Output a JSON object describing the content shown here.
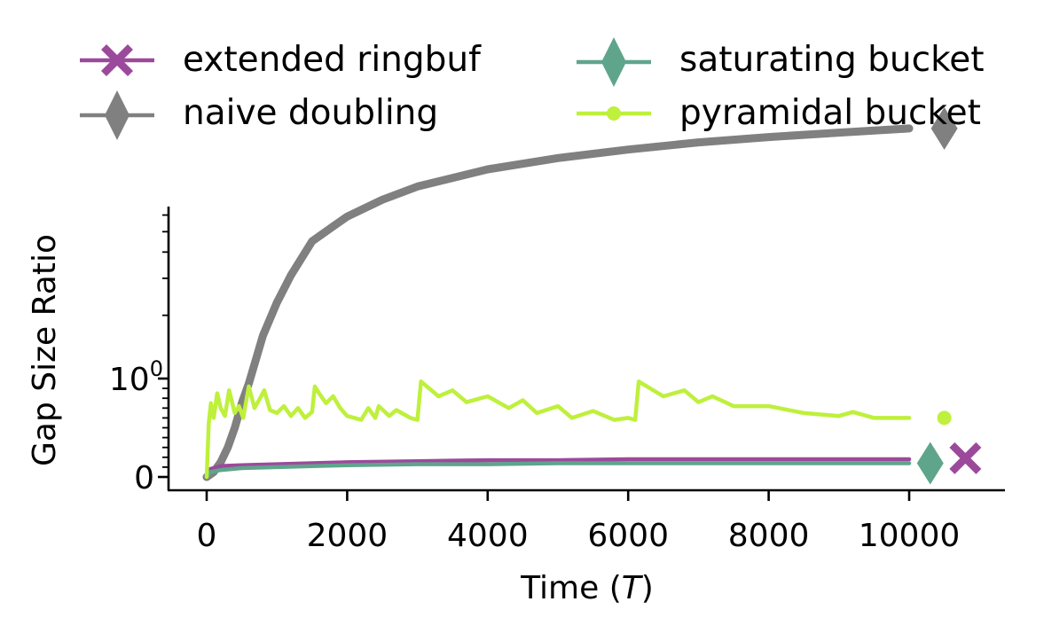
{
  "chart_data": {
    "type": "line",
    "xlabel": "Time (T)",
    "xlabel_prefix": "Time (",
    "xlabel_var": "T",
    "xlabel_suffix": ")",
    "ylabel": "Gap Size Ratio",
    "xlim": [
      -500,
      11300
    ],
    "yscale": "symlog",
    "x_ticks": [
      0,
      2000,
      4000,
      6000,
      8000,
      10000
    ],
    "x_tick_labels": [
      "0",
      "2000",
      "4000",
      "6000",
      "8000",
      "10000"
    ],
    "y_tick_labels": [
      {
        "value": 0,
        "base": "0",
        "exp": ""
      },
      {
        "value": 1,
        "base": "10",
        "exp": "0"
      }
    ],
    "grid": false,
    "legend_position": "top",
    "series": [
      {
        "name": "extended ringbuf",
        "color": "#9b4a9b",
        "marker": "x-filled",
        "end_marker_x": 10800,
        "end_value": 0.19,
        "x": [
          0,
          50,
          200,
          500,
          1000,
          1500,
          2000,
          3000,
          4000,
          5000,
          6000,
          7000,
          8000,
          9000,
          10000
        ],
        "values": [
          0.0,
          0.08,
          0.11,
          0.12,
          0.13,
          0.14,
          0.15,
          0.16,
          0.17,
          0.17,
          0.18,
          0.18,
          0.18,
          0.18,
          0.18
        ]
      },
      {
        "name": "saturating bucket",
        "color": "#5fa58c",
        "marker": "diamond",
        "end_marker_x": 10300,
        "end_value": 0.14,
        "x": [
          0,
          50,
          200,
          500,
          1000,
          1500,
          2000,
          3000,
          4000,
          5000,
          6000,
          7000,
          8000,
          9000,
          10000
        ],
        "values": [
          0.0,
          0.05,
          0.07,
          0.09,
          0.1,
          0.11,
          0.12,
          0.13,
          0.13,
          0.14,
          0.14,
          0.14,
          0.14,
          0.14,
          0.14
        ]
      },
      {
        "name": "naive doubling",
        "color": "#808080",
        "marker": "diamond",
        "end_marker_x": 10500,
        "end_value": 15.5,
        "x": [
          0,
          100,
          200,
          300,
          400,
          500,
          600,
          800,
          1000,
          1200,
          1500,
          1800,
          2000,
          2500,
          3000,
          4000,
          5000,
          6000,
          7000,
          8000,
          9000,
          10000
        ],
        "values": [
          0.0,
          0.05,
          0.15,
          0.3,
          0.5,
          0.75,
          0.95,
          1.6,
          2.3,
          3.1,
          4.5,
          5.3,
          5.9,
          7.1,
          8.2,
          9.9,
          11.2,
          12.3,
          13.3,
          14.1,
          14.8,
          15.5
        ]
      },
      {
        "name": "pyramidal bucket",
        "color": "#bef03c",
        "marker": "dot",
        "end_marker_x": 10500,
        "end_value": 0.6,
        "x": [
          0,
          30,
          60,
          100,
          150,
          200,
          260,
          320,
          400,
          460,
          520,
          600,
          680,
          760,
          820,
          900,
          1000,
          1100,
          1200,
          1300,
          1400,
          1500,
          1540,
          1600,
          1700,
          1800,
          1900,
          2000,
          2200,
          2300,
          2400,
          2450,
          2600,
          2700,
          2900,
          3000,
          3050,
          3300,
          3500,
          3700,
          4000,
          4300,
          4500,
          4700,
          5000,
          5200,
          5500,
          5800,
          6000,
          6100,
          6150,
          6500,
          6800,
          7000,
          7200,
          7500,
          8000,
          8500,
          9000,
          9200,
          9500,
          10000
        ],
        "values": [
          0.0,
          0.55,
          0.75,
          0.6,
          0.85,
          0.7,
          0.62,
          0.88,
          0.65,
          0.72,
          0.6,
          0.92,
          0.7,
          0.8,
          0.88,
          0.68,
          0.65,
          0.72,
          0.62,
          0.7,
          0.6,
          0.66,
          0.92,
          0.85,
          0.75,
          0.82,
          0.7,
          0.62,
          0.58,
          0.7,
          0.6,
          0.72,
          0.62,
          0.68,
          0.6,
          0.58,
          0.97,
          0.82,
          0.88,
          0.76,
          0.82,
          0.7,
          0.78,
          0.65,
          0.72,
          0.6,
          0.67,
          0.58,
          0.6,
          0.58,
          0.97,
          0.82,
          0.88,
          0.76,
          0.82,
          0.72,
          0.72,
          0.65,
          0.62,
          0.66,
          0.6,
          0.6
        ]
      }
    ]
  }
}
